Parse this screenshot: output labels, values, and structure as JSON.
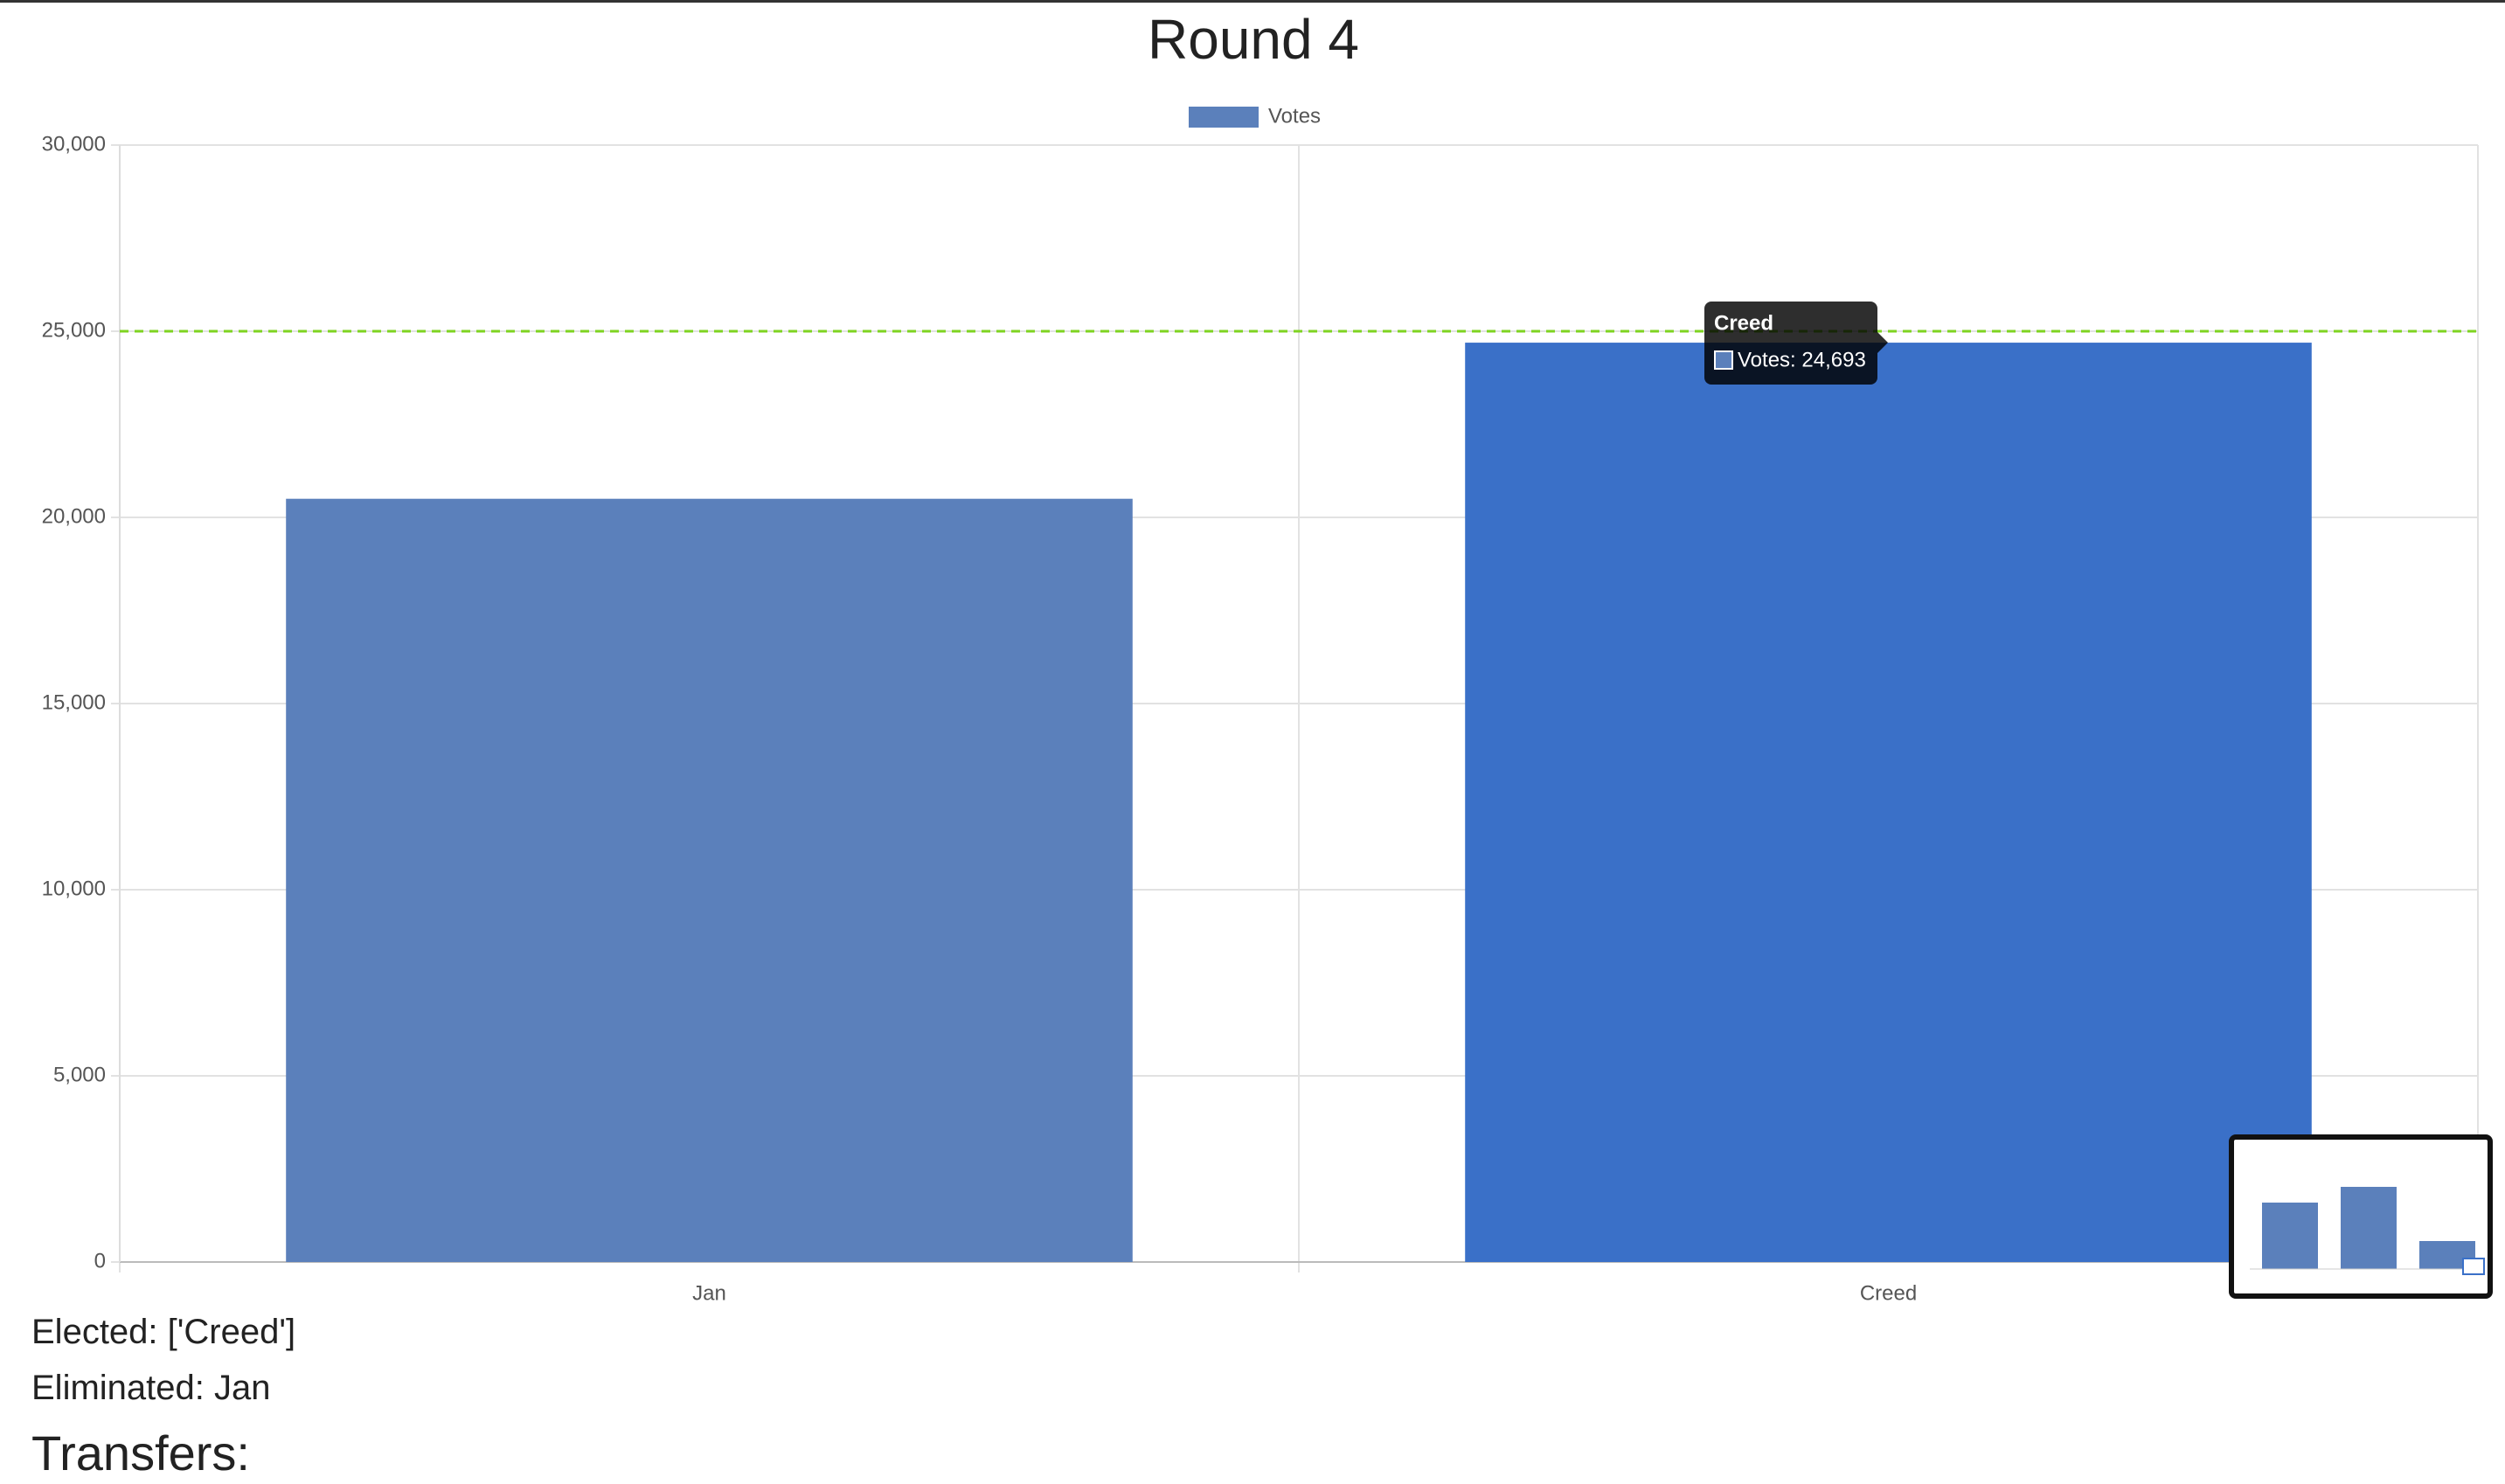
{
  "chart_data": {
    "type": "bar",
    "title": "Round 4",
    "categories": [
      "Jan",
      "Creed"
    ],
    "series": [
      {
        "name": "Votes",
        "color": "#5b80bb",
        "hover_color": "#3a70c8",
        "values": [
          20500,
          24693
        ]
      }
    ],
    "hover_index": 1,
    "ylim": [
      0,
      30000
    ],
    "yticks": [
      0,
      {
        "value": 5000,
        "label": "5,000"
      },
      {
        "value": 10000,
        "label": "10,000"
      },
      {
        "value": 15000,
        "label": "15,000"
      },
      {
        "value": 20000,
        "label": "20,000"
      },
      {
        "value": 25000,
        "label": "25,000"
      },
      {
        "value": 30000,
        "label": "30,000"
      }
    ],
    "grid": true,
    "legend": "top",
    "threshold": {
      "value": 25000,
      "color": "#7ed321"
    },
    "tooltip": {
      "title": "Creed",
      "label": "Votes: 24,693"
    }
  },
  "results": {
    "elected": "Elected: ['Creed']",
    "eliminated": "Eliminated: Jan",
    "transfers": "Transfers:"
  }
}
